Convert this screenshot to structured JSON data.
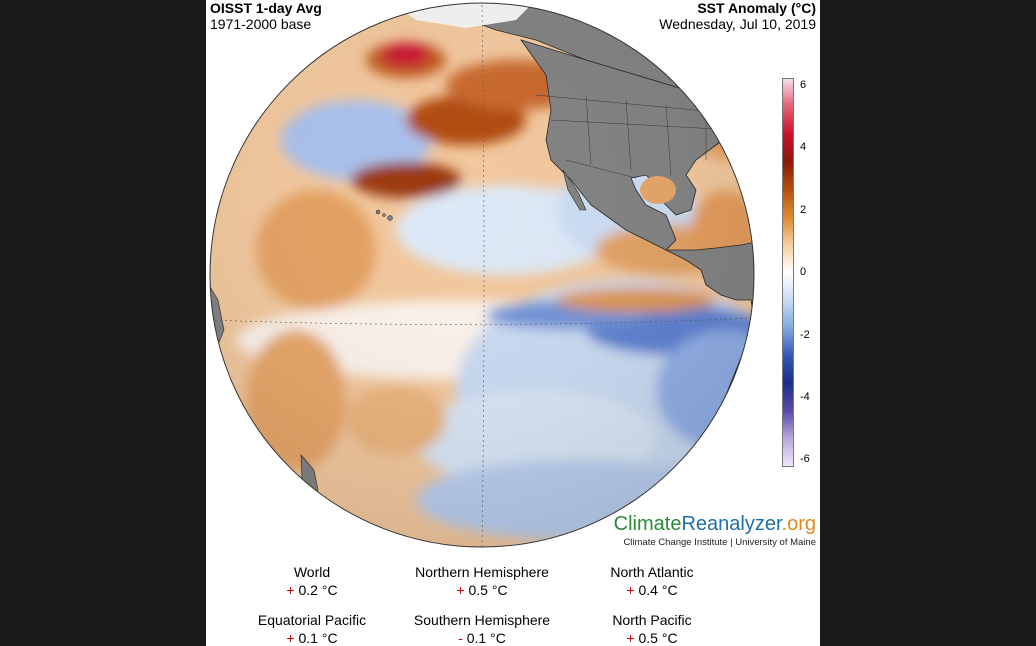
{
  "header": {
    "title": "OISST 1-day Avg",
    "baseline": "1971-2000 base",
    "variable": "SST Anomaly (°C)",
    "date": "Wednesday, Jul 10, 2019"
  },
  "colorbar": {
    "ticks": [
      "6",
      "4",
      "2",
      "0",
      "-2",
      "-4",
      "-6"
    ],
    "colors": [
      "#f3e0f0",
      "#e36070",
      "#c8102e",
      "#8c1a0a",
      "#b55010",
      "#e08a30",
      "#f4cfa0",
      "#ffffff",
      "#c8dcf4",
      "#7fa8e0",
      "#3458b8",
      "#1c2e8c",
      "#5a4aa8",
      "#b8a8e0",
      "#efe6f8"
    ]
  },
  "brand": {
    "part1": "Climate",
    "part2": "Reanalyzer",
    "part3": ".org",
    "subtitle": "Climate Change Institute | University of Maine"
  },
  "stats": [
    {
      "label": "World",
      "sign": "+",
      "value": "0.2 °C"
    },
    {
      "label": "Northern Hemisphere",
      "sign": "+",
      "value": "0.5 °C"
    },
    {
      "label": "North Atlantic",
      "sign": "+",
      "value": "0.4 °C"
    },
    {
      "label": "Equatorial Pacific",
      "sign": "+",
      "value": "0.1 °C"
    },
    {
      "label": "Southern Hemisphere",
      "sign": "-",
      "value": "0.1 °C"
    },
    {
      "label": "North Pacific",
      "sign": "+",
      "value": "0.5 °C"
    }
  ],
  "map": {
    "land_color": "#808080",
    "ocean_base": "#f2c79c",
    "warm_color": "#b0480c",
    "cool_color": "#5577cc"
  }
}
